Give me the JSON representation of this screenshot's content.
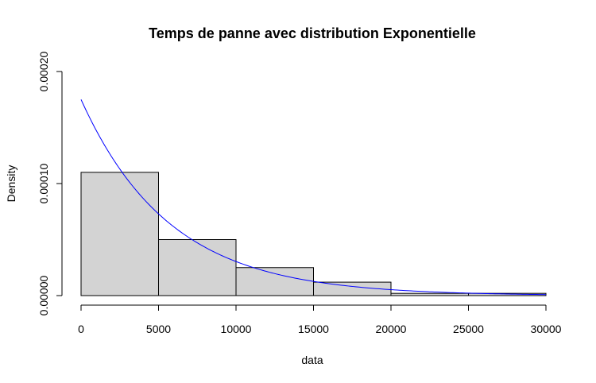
{
  "chart_data": {
    "type": "bar",
    "title": "Temps de panne avec distribution Exponentielle",
    "xlabel": "data",
    "ylabel": "Density",
    "bins": [
      {
        "start": 0,
        "end": 5000,
        "density": 0.00011
      },
      {
        "start": 5000,
        "end": 10000,
        "density": 5e-05
      },
      {
        "start": 10000,
        "end": 15000,
        "density": 2.5e-05
      },
      {
        "start": 15000,
        "end": 20000,
        "density": 1.2e-05
      },
      {
        "start": 20000,
        "end": 25000,
        "density": 2e-06
      },
      {
        "start": 25000,
        "end": 30000,
        "density": 2e-06
      }
    ],
    "curve": {
      "type": "exponential-density",
      "rate": 0.000175,
      "x_range": [
        0,
        30000
      ],
      "color": "#0000ff"
    },
    "bar_fill": "#d3d3d3",
    "xlim": [
      0,
      30000
    ],
    "ylim": [
      0,
      0.0002
    ],
    "x_ticks": [
      0,
      5000,
      10000,
      15000,
      20000,
      25000,
      30000
    ],
    "x_tick_labels": [
      "0",
      "5000",
      "10000",
      "15000",
      "20000",
      "25000",
      "30000"
    ],
    "y_ticks": [
      0,
      0.0001,
      0.0002
    ],
    "y_tick_labels": [
      "0.00000",
      "0.00010",
      "0.00020"
    ],
    "grid": false,
    "legend": "none"
  }
}
